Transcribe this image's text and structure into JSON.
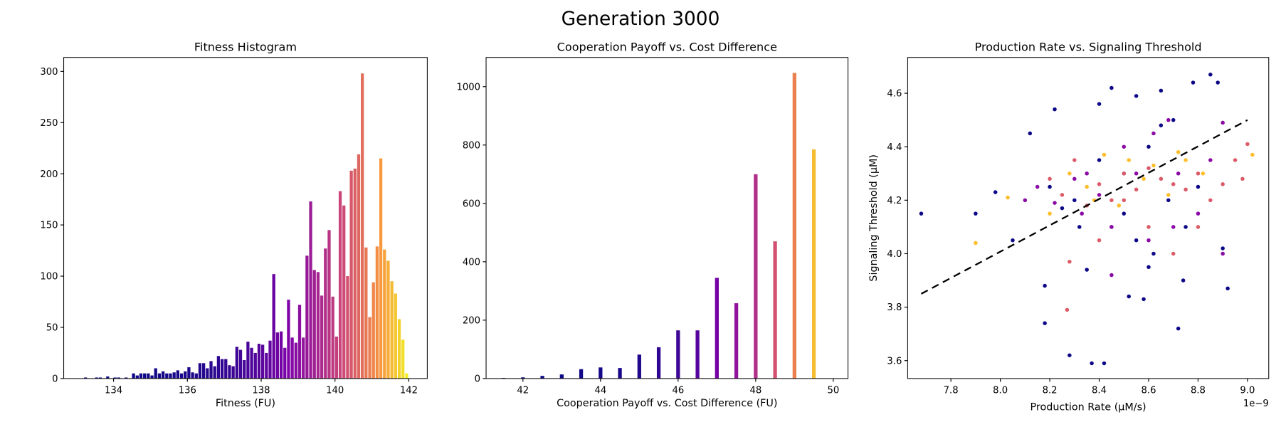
{
  "suptitle": "Generation 3000",
  "chart_data": [
    {
      "type": "histogram",
      "title": "Fitness Histogram",
      "xlabel": "Fitness (FU)",
      "colormap": "plasma",
      "bins": [
        133.0,
        133.1,
        133.2,
        133.3,
        133.4,
        133.5,
        133.6,
        133.7,
        133.8,
        133.9,
        134.0,
        134.1,
        134.2,
        134.3,
        134.4,
        134.5,
        134.6,
        134.7,
        134.8,
        134.9,
        135.0,
        135.1,
        135.2,
        135.3,
        135.4,
        135.5,
        135.6,
        135.7,
        135.8,
        135.9,
        136.0,
        136.1,
        136.2,
        136.3,
        136.4,
        136.5,
        136.6,
        136.7,
        136.8,
        136.9,
        137.0,
        137.1,
        137.2,
        137.3,
        137.4,
        137.5,
        137.6,
        137.7,
        137.8,
        137.9,
        138.0,
        138.1,
        138.2,
        138.3,
        138.4,
        138.5,
        138.6,
        138.7,
        138.8,
        138.9,
        139.0,
        139.1,
        139.2,
        139.3,
        139.4,
        139.5,
        139.6,
        139.7,
        139.8,
        139.9,
        140.0,
        140.1,
        140.2,
        140.3,
        140.4,
        140.5,
        140.6,
        140.7,
        140.8,
        140.9,
        141.0,
        141.1,
        141.2,
        141.3,
        141.4,
        141.5,
        141.6,
        141.7,
        141.8,
        141.9,
        142.0
      ],
      "values": [
        0,
        0,
        1,
        0,
        0,
        1,
        1,
        0,
        2,
        0,
        1,
        1,
        0,
        1,
        0,
        5,
        3,
        5,
        5,
        5,
        3,
        10,
        5,
        7,
        5,
        5,
        6,
        8,
        5,
        7,
        11,
        6,
        5,
        15,
        15,
        10,
        17,
        12,
        22,
        19,
        19,
        13,
        12,
        31,
        28,
        18,
        36,
        30,
        25,
        34,
        33,
        25,
        37,
        102,
        45,
        46,
        30,
        77,
        40,
        35,
        72,
        40,
        120,
        173,
        106,
        104,
        81,
        127,
        145,
        80,
        41,
        183,
        169,
        100,
        203,
        205,
        219,
        298,
        128,
        60,
        94,
        129,
        215,
        126,
        115,
        95,
        83,
        58,
        38,
        5
      ],
      "xlim": [
        132.65,
        142.5
      ],
      "ylim": [
        0,
        313.6
      ],
      "xticks": [
        134,
        136,
        138,
        140,
        142
      ],
      "yticks": [
        0,
        50,
        100,
        150,
        200,
        250,
        300
      ]
    },
    {
      "type": "bar",
      "title": "Cooperation Payoff vs. Cost Difference",
      "xlabel": "Cooperation Payoff vs. Cost Difference (FU)",
      "colormap": "plasma",
      "x": [
        41.5,
        42,
        42.5,
        43,
        43.5,
        44,
        44.5,
        45,
        45.5,
        46,
        46.5,
        47,
        47.5,
        48,
        48.5,
        49,
        49.5
      ],
      "values": [
        2,
        4,
        9,
        14,
        32,
        38,
        36,
        82,
        107,
        165,
        165,
        345,
        258,
        700,
        470,
        1047,
        785
      ],
      "xlim": [
        41.05,
        50.38
      ],
      "ylim": [
        0,
        1100
      ],
      "xticks": [
        42,
        44,
        46,
        48,
        50
      ],
      "yticks": [
        0,
        200,
        400,
        600,
        800,
        1000
      ]
    },
    {
      "type": "scatter",
      "title": "Production Rate vs. Signaling Threshold",
      "xlabel": "Production Rate (μM/s)",
      "ylabel": "Signaling Threshold (μM)",
      "x_offset_label": "1e−9",
      "xlim": [
        7.625,
        9.086
      ],
      "ylim": [
        3.533,
        4.734
      ],
      "xticks": [
        7.8,
        {
          "value": 8,
          "label": "8.0"
        },
        8.2,
        8.4,
        8.6,
        8.8,
        {
          "value": 9,
          "label": "9.0"
        }
      ],
      "yticks": [
        3.6,
        3.8,
        {
          "value": 4,
          "label": "4.0"
        },
        4.2,
        4.4,
        4.6
      ],
      "series": [
        {
          "color": "#0d0887",
          "x": [
            7.68,
            7.9,
            7.98,
            8.05,
            8.12,
            8.18,
            8.18,
            8.2,
            8.22,
            8.28,
            8.32,
            8.35,
            8.37,
            8.42,
            8.4,
            8.45,
            8.5,
            8.52,
            8.55,
            8.58,
            8.6,
            8.62,
            8.65,
            8.68,
            8.7,
            8.72,
            8.74,
            8.78,
            8.85,
            8.88,
            8.92,
            8.9,
            8.3,
            8.45,
            8.6,
            8.75,
            8.4,
            8.55,
            8.65,
            8.8,
            8.25,
            8.5
          ],
          "values": [
            4.15,
            4.15,
            4.23,
            4.05,
            4.45,
            3.88,
            3.74,
            4.25,
            4.54,
            3.62,
            4.1,
            3.94,
            3.59,
            3.59,
            4.56,
            4.62,
            4.3,
            3.84,
            4.59,
            3.83,
            4.4,
            4.0,
            4.61,
            4.2,
            4.5,
            3.72,
            3.9,
            4.64,
            4.67,
            4.64,
            3.87,
            4.02,
            4.2,
            4.1,
            3.95,
            4.1,
            4.35,
            4.05,
            4.48,
            4.25,
            4.17,
            4.15
          ]
        },
        {
          "color": "#8b0aa5",
          "x": [
            8.1,
            8.15,
            8.22,
            8.3,
            8.35,
            8.4,
            8.45,
            8.5,
            8.55,
            8.6,
            8.62,
            8.68,
            8.72,
            8.8,
            8.85,
            8.9,
            8.9,
            8.45,
            8.33,
            8.7
          ],
          "values": [
            4.2,
            4.25,
            4.19,
            4.28,
            4.3,
            4.22,
            4.1,
            4.4,
            4.3,
            4.05,
            4.45,
            4.5,
            4.3,
            4.15,
            4.35,
            4.49,
            4.0,
            3.92,
            4.15,
            4.1
          ]
        },
        {
          "color": "#db5c68",
          "x": [
            8.2,
            8.25,
            8.28,
            8.3,
            8.35,
            8.4,
            8.45,
            8.5,
            8.55,
            8.6,
            8.65,
            8.7,
            8.75,
            8.8,
            8.85,
            8.9,
            8.95,
            9.0,
            8.98,
            8.6,
            8.7,
            8.4,
            8.27,
            8.5,
            8.8
          ],
          "values": [
            4.28,
            4.22,
            3.97,
            4.35,
            4.18,
            4.26,
            4.2,
            4.3,
            4.24,
            4.32,
            4.28,
            4.26,
            4.24,
            4.3,
            4.2,
            4.26,
            4.35,
            4.41,
            4.28,
            4.1,
            4.0,
            4.05,
            3.79,
            4.2,
            4.1
          ]
        },
        {
          "color": "#febd2a",
          "x": [
            7.9,
            8.03,
            8.2,
            8.28,
            8.35,
            8.42,
            8.48,
            8.52,
            8.58,
            8.62,
            8.68,
            8.75,
            8.82,
            9.02,
            8.38,
            8.72
          ],
          "values": [
            4.04,
            4.21,
            4.15,
            4.3,
            4.25,
            4.37,
            4.18,
            4.35,
            4.28,
            4.33,
            4.22,
            4.35,
            4.3,
            4.37,
            4.2,
            4.38
          ]
        }
      ],
      "fit_line": {
        "x": [
          7.68,
          9.0
        ],
        "values": [
          3.85,
          4.5
        ],
        "color": "#000000",
        "style": "dashed"
      }
    }
  ]
}
